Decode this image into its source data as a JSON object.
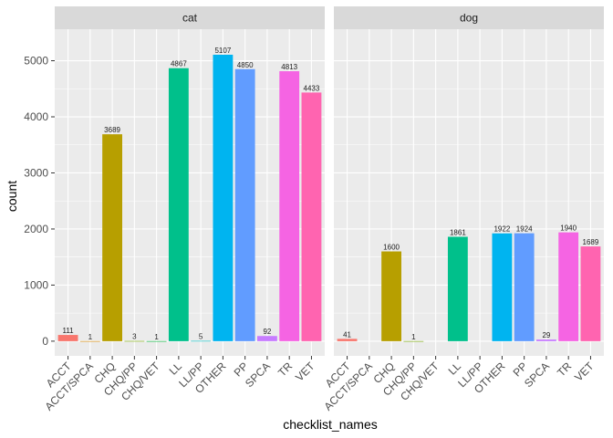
{
  "chart_data": {
    "type": "bar",
    "xlabel": "checklist_names",
    "ylabel": "count",
    "ylim": [
      0,
      5300
    ],
    "yticks": [
      0,
      1000,
      2000,
      3000,
      4000,
      5000
    ],
    "categories": [
      "ACCT",
      "ACCT/SPCA",
      "CHQ",
      "CHQ/PP",
      "CHQ/VET",
      "LL",
      "LL/PP",
      "OTHER",
      "PP",
      "SPCA",
      "TR",
      "VET"
    ],
    "colors": {
      "ACCT": "#F8766D",
      "ACCT/SPCA": "#DE8C00",
      "CHQ": "#B79F00",
      "CHQ/PP": "#7CAE00",
      "CHQ/VET": "#00BA38",
      "LL": "#00C08B",
      "LL/PP": "#00BFC4",
      "OTHER": "#00B4F0",
      "PP": "#619CFF",
      "SPCA": "#C77CFF",
      "TR": "#F564E3",
      "VET": "#FF64B0"
    },
    "grid": true,
    "legend": "none",
    "facets": [
      {
        "label": "cat",
        "values": [
          111,
          1,
          3689,
          3,
          1,
          4867,
          5,
          5107,
          4850,
          92,
          4813,
          4433
        ],
        "labels": [
          "111",
          "1",
          "3689",
          "3",
          "1",
          "4867",
          "5",
          "5107",
          "4850",
          "92",
          "4813",
          "4433"
        ]
      },
      {
        "label": "dog",
        "values": [
          41,
          0,
          1600,
          1,
          0,
          1861,
          0,
          1922,
          1924,
          29,
          1940,
          1689
        ],
        "labels": [
          "41",
          "",
          "1600",
          "1",
          "",
          "1861",
          "",
          "1922",
          "1924",
          "29",
          "1940",
          "1689"
        ]
      }
    ]
  }
}
